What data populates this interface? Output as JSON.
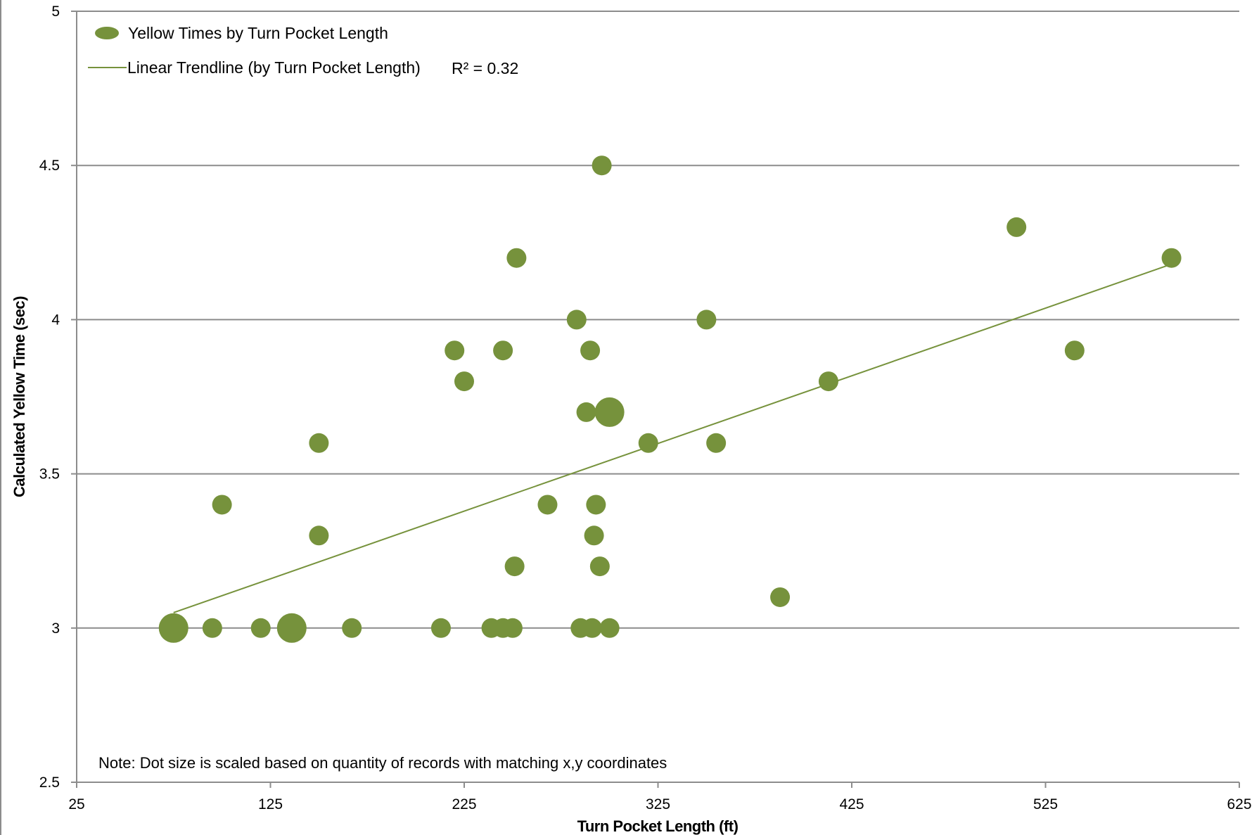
{
  "chart_data": {
    "type": "scatter",
    "title": "",
    "xlabel": "Turn Pocket Length (ft)",
    "ylabel": "Calculated Yellow Time (sec)",
    "xlim": [
      25,
      625
    ],
    "ylim": [
      2.5,
      5
    ],
    "x_ticks": [
      "25",
      "125",
      "225",
      "325",
      "425",
      "525",
      "625"
    ],
    "y_ticks": [
      "2.5",
      "3",
      "3.5",
      "4",
      "4.5",
      "5"
    ],
    "grid": "horizontal",
    "legend_position": "top-left",
    "series": [
      {
        "name": "Yellow Times by Turn Pocket Length",
        "type": "scatter",
        "color": "#76923c",
        "points": [
          {
            "x": 75,
            "y": 3.0,
            "count": 3
          },
          {
            "x": 95,
            "y": 3.0,
            "count": 1
          },
          {
            "x": 100,
            "y": 3.4,
            "count": 1
          },
          {
            "x": 120,
            "y": 3.0,
            "count": 1
          },
          {
            "x": 136,
            "y": 3.0,
            "count": 3
          },
          {
            "x": 150,
            "y": 3.6,
            "count": 1
          },
          {
            "x": 150,
            "y": 3.3,
            "count": 1
          },
          {
            "x": 167,
            "y": 3.0,
            "count": 1
          },
          {
            "x": 213,
            "y": 3.0,
            "count": 1
          },
          {
            "x": 220,
            "y": 3.9,
            "count": 1
          },
          {
            "x": 225,
            "y": 3.8,
            "count": 1
          },
          {
            "x": 239,
            "y": 3.0,
            "count": 1
          },
          {
            "x": 245,
            "y": 3.0,
            "count": 1
          },
          {
            "x": 245,
            "y": 3.9,
            "count": 1
          },
          {
            "x": 250,
            "y": 3.0,
            "count": 1
          },
          {
            "x": 251,
            "y": 3.2,
            "count": 1
          },
          {
            "x": 252,
            "y": 4.2,
            "count": 1
          },
          {
            "x": 268,
            "y": 3.4,
            "count": 1
          },
          {
            "x": 283,
            "y": 4.0,
            "count": 1
          },
          {
            "x": 285,
            "y": 3.0,
            "count": 1
          },
          {
            "x": 288,
            "y": 3.7,
            "count": 1
          },
          {
            "x": 290,
            "y": 3.9,
            "count": 1
          },
          {
            "x": 291,
            "y": 3.0,
            "count": 1
          },
          {
            "x": 292,
            "y": 3.3,
            "count": 1
          },
          {
            "x": 293,
            "y": 3.4,
            "count": 1
          },
          {
            "x": 295,
            "y": 3.2,
            "count": 1
          },
          {
            "x": 296,
            "y": 4.5,
            "count": 1
          },
          {
            "x": 300,
            "y": 3.7,
            "count": 3
          },
          {
            "x": 300,
            "y": 3.0,
            "count": 1
          },
          {
            "x": 320,
            "y": 3.6,
            "count": 1
          },
          {
            "x": 350,
            "y": 4.0,
            "count": 1
          },
          {
            "x": 355,
            "y": 3.6,
            "count": 1
          },
          {
            "x": 388,
            "y": 3.1,
            "count": 1
          },
          {
            "x": 413,
            "y": 3.8,
            "count": 1
          },
          {
            "x": 510,
            "y": 4.3,
            "count": 1
          },
          {
            "x": 540,
            "y": 3.9,
            "count": 1
          },
          {
            "x": 590,
            "y": 4.2,
            "count": 1
          }
        ]
      },
      {
        "name": "Linear Trendline (by Turn Pocket Length)",
        "type": "line",
        "color": "#76923c",
        "points": [
          {
            "x": 75,
            "y": 3.05
          },
          {
            "x": 590,
            "y": 4.18
          }
        ]
      }
    ],
    "r_squared_label": "R² = 0.32",
    "note": "Note: Dot size is scaled based on quantity of records with matching x,y coordinates"
  }
}
